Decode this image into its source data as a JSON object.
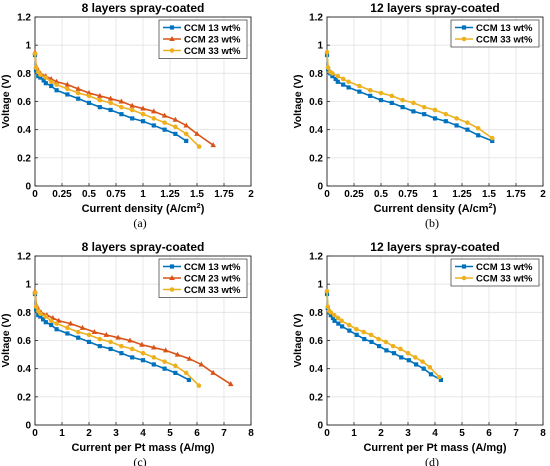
{
  "colors": {
    "ccm13": "#0072BD",
    "ccm23": "#D95319",
    "ccm33": "#EDB120"
  },
  "chart_data": [
    {
      "type": "line",
      "title": "8 layers spray-coated",
      "xlabel": "Current density (A/cm",
      "xlabel_sup": "2",
      "xlabel_end": ")",
      "ylabel": "Voltage (V)",
      "caption": "(a)",
      "xlim": [
        0,
        2
      ],
      "ylim": [
        0,
        1.2
      ],
      "xticks": [
        "0",
        "0.25",
        "0.5",
        "0.75",
        "1",
        "1.25",
        "1.5",
        "1.75",
        "2"
      ],
      "yticks": [
        "0",
        "0.2",
        "0.4",
        "0.6",
        "0.8",
        "1",
        "1.2"
      ],
      "grid": true,
      "legend": "top-right",
      "series": [
        {
          "name": "CCM 13 wt%",
          "color": "ccm13",
          "marker": "square",
          "x": [
            0,
            0.01,
            0.03,
            0.05,
            0.08,
            0.1,
            0.15,
            0.2,
            0.3,
            0.4,
            0.5,
            0.6,
            0.7,
            0.8,
            0.9,
            1.0,
            1.1,
            1.2,
            1.3,
            1.4
          ],
          "y": [
            0.93,
            0.82,
            0.78,
            0.77,
            0.75,
            0.73,
            0.71,
            0.68,
            0.65,
            0.62,
            0.59,
            0.56,
            0.54,
            0.51,
            0.48,
            0.46,
            0.43,
            0.4,
            0.37,
            0.32
          ]
        },
        {
          "name": "CCM 23 wt%",
          "color": "ccm23",
          "marker": "triangle",
          "x": [
            0,
            0.01,
            0.03,
            0.05,
            0.1,
            0.15,
            0.2,
            0.3,
            0.4,
            0.5,
            0.6,
            0.7,
            0.8,
            0.9,
            1.0,
            1.1,
            1.2,
            1.3,
            1.4,
            1.5,
            1.65
          ],
          "y": [
            0.95,
            0.85,
            0.82,
            0.8,
            0.78,
            0.76,
            0.74,
            0.72,
            0.69,
            0.66,
            0.64,
            0.62,
            0.6,
            0.57,
            0.55,
            0.53,
            0.5,
            0.47,
            0.43,
            0.37,
            0.29
          ]
        },
        {
          "name": "CCM 33 wt%",
          "color": "ccm33",
          "marker": "circle",
          "x": [
            0,
            0.01,
            0.03,
            0.05,
            0.1,
            0.15,
            0.2,
            0.3,
            0.4,
            0.5,
            0.6,
            0.7,
            0.8,
            0.9,
            1.0,
            1.1,
            1.2,
            1.3,
            1.4,
            1.52
          ],
          "y": [
            0.94,
            0.84,
            0.81,
            0.79,
            0.77,
            0.74,
            0.72,
            0.69,
            0.66,
            0.64,
            0.61,
            0.59,
            0.56,
            0.54,
            0.51,
            0.48,
            0.45,
            0.42,
            0.37,
            0.28
          ]
        }
      ]
    },
    {
      "type": "line",
      "title": "12 layers spray-coated",
      "xlabel": "Current density (A/cm",
      "xlabel_sup": "2",
      "xlabel_end": ")",
      "ylabel": "Voltage (V)",
      "caption": "(b)",
      "xlim": [
        0,
        2
      ],
      "ylim": [
        0,
        1.2
      ],
      "xticks": [
        "0",
        "0.25",
        "0.5",
        "0.75",
        "1",
        "1.25",
        "1.5",
        "1.75",
        "2"
      ],
      "yticks": [
        "0",
        "0.2",
        "0.4",
        "0.6",
        "0.8",
        "1",
        "1.2"
      ],
      "grid": true,
      "legend": "top-right",
      "series": [
        {
          "name": "CCM 13 wt%",
          "color": "ccm13",
          "marker": "square",
          "x": [
            0,
            0.01,
            0.03,
            0.05,
            0.08,
            0.1,
            0.15,
            0.2,
            0.3,
            0.4,
            0.5,
            0.6,
            0.7,
            0.8,
            0.9,
            1.0,
            1.1,
            1.2,
            1.3,
            1.4,
            1.53
          ],
          "y": [
            0.93,
            0.83,
            0.8,
            0.78,
            0.76,
            0.74,
            0.72,
            0.7,
            0.67,
            0.64,
            0.61,
            0.59,
            0.56,
            0.53,
            0.51,
            0.48,
            0.46,
            0.43,
            0.4,
            0.36,
            0.32
          ]
        },
        {
          "name": "CCM 33 wt%",
          "color": "ccm33",
          "marker": "circle",
          "x": [
            0,
            0.01,
            0.03,
            0.05,
            0.1,
            0.15,
            0.2,
            0.3,
            0.4,
            0.5,
            0.6,
            0.7,
            0.8,
            0.9,
            1.0,
            1.1,
            1.2,
            1.3,
            1.4,
            1.53
          ],
          "y": [
            0.95,
            0.84,
            0.81,
            0.8,
            0.78,
            0.76,
            0.74,
            0.71,
            0.68,
            0.66,
            0.64,
            0.61,
            0.59,
            0.56,
            0.54,
            0.51,
            0.48,
            0.45,
            0.41,
            0.34
          ]
        }
      ]
    },
    {
      "type": "line",
      "title": "8 layers spray-coated",
      "xlabel": "Current per Pt mass (A/mg)",
      "ylabel": "Voltage (V)",
      "caption": "(c)",
      "xlim": [
        0,
        8
      ],
      "ylim": [
        0,
        1.2
      ],
      "xticks": [
        "0",
        "1",
        "2",
        "3",
        "4",
        "5",
        "6",
        "7",
        "8"
      ],
      "yticks": [
        "0",
        "0.2",
        "0.4",
        "0.6",
        "0.8",
        "1",
        "1.2"
      ],
      "grid": true,
      "legend": "top-right",
      "series": [
        {
          "name": "CCM 13 wt%",
          "color": "ccm13",
          "marker": "square",
          "x": [
            0,
            0.04,
            0.12,
            0.2,
            0.3,
            0.4,
            0.6,
            0.8,
            1.2,
            1.6,
            2.0,
            2.4,
            2.8,
            3.2,
            3.6,
            4.0,
            4.4,
            4.8,
            5.2,
            5.7
          ],
          "y": [
            0.93,
            0.82,
            0.78,
            0.77,
            0.75,
            0.73,
            0.71,
            0.68,
            0.65,
            0.62,
            0.59,
            0.56,
            0.54,
            0.51,
            0.48,
            0.46,
            0.43,
            0.4,
            0.37,
            0.32
          ]
        },
        {
          "name": "CCM 23 wt%",
          "color": "ccm23",
          "marker": "triangle",
          "x": [
            0,
            0.05,
            0.13,
            0.22,
            0.44,
            0.66,
            0.88,
            1.32,
            1.76,
            2.2,
            2.64,
            3.08,
            3.52,
            3.96,
            4.4,
            4.84,
            5.28,
            5.72,
            6.16,
            6.6,
            7.25
          ],
          "y": [
            0.95,
            0.85,
            0.82,
            0.8,
            0.78,
            0.76,
            0.74,
            0.72,
            0.69,
            0.66,
            0.64,
            0.62,
            0.6,
            0.57,
            0.55,
            0.53,
            0.5,
            0.47,
            0.43,
            0.37,
            0.29
          ]
        },
        {
          "name": "CCM 33 wt%",
          "color": "ccm33",
          "marker": "circle",
          "x": [
            0,
            0.04,
            0.12,
            0.2,
            0.4,
            0.6,
            0.8,
            1.2,
            1.6,
            2.0,
            2.4,
            2.8,
            3.2,
            3.6,
            4.0,
            4.4,
            4.8,
            5.2,
            5.6,
            6.07
          ],
          "y": [
            0.94,
            0.84,
            0.81,
            0.79,
            0.77,
            0.74,
            0.72,
            0.69,
            0.66,
            0.64,
            0.61,
            0.59,
            0.56,
            0.54,
            0.51,
            0.48,
            0.45,
            0.42,
            0.37,
            0.28
          ]
        }
      ]
    },
    {
      "type": "line",
      "title": "12 layers spray-coated",
      "xlabel": "Current per Pt mass (A/mg)",
      "ylabel": "Voltage (V)",
      "caption": "(d)",
      "xlim": [
        0,
        8
      ],
      "ylim": [
        0,
        1.2
      ],
      "xticks": [
        "0",
        "1",
        "2",
        "3",
        "4",
        "5",
        "6",
        "7",
        "8"
      ],
      "yticks": [
        "0",
        "0.2",
        "0.4",
        "0.6",
        "0.8",
        "1",
        "1.2"
      ],
      "grid": true,
      "legend": "top-right",
      "series": [
        {
          "name": "CCM 13 wt%",
          "color": "ccm13",
          "marker": "square",
          "x": [
            0,
            0.03,
            0.08,
            0.14,
            0.22,
            0.28,
            0.42,
            0.56,
            0.83,
            1.1,
            1.38,
            1.65,
            1.93,
            2.2,
            2.48,
            2.75,
            3.03,
            3.3,
            3.58,
            3.85,
            4.22
          ],
          "y": [
            0.93,
            0.83,
            0.8,
            0.78,
            0.76,
            0.74,
            0.72,
            0.7,
            0.67,
            0.64,
            0.61,
            0.59,
            0.56,
            0.53,
            0.51,
            0.48,
            0.46,
            0.43,
            0.4,
            0.36,
            0.32
          ]
        },
        {
          "name": "CCM 33 wt%",
          "color": "ccm33",
          "marker": "circle",
          "x": [
            0,
            0.03,
            0.08,
            0.14,
            0.27,
            0.41,
            0.54,
            0.82,
            1.09,
            1.36,
            1.63,
            1.91,
            2.18,
            2.45,
            2.72,
            3.0,
            3.27,
            3.54,
            3.81,
            4.16
          ],
          "y": [
            0.95,
            0.84,
            0.81,
            0.8,
            0.78,
            0.76,
            0.74,
            0.71,
            0.68,
            0.66,
            0.64,
            0.61,
            0.59,
            0.56,
            0.54,
            0.51,
            0.48,
            0.45,
            0.41,
            0.34
          ]
        }
      ]
    }
  ]
}
